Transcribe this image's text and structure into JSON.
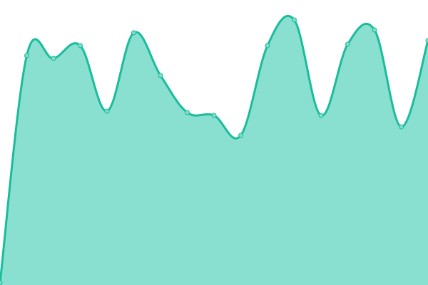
{
  "chart_data": {
    "type": "area",
    "x": [
      0,
      1,
      2,
      3,
      4,
      5,
      6,
      7,
      8,
      9,
      10,
      11,
      12,
      13,
      14,
      15,
      16
    ],
    "values": [
      3,
      322,
      318,
      336,
      244,
      354,
      294,
      242,
      238,
      210,
      336,
      372,
      238,
      338,
      358,
      222,
      343
    ],
    "ylim": [
      0,
      400
    ],
    "grid": false,
    "legend": "none",
    "colors": {
      "line": "#1abc9c",
      "fill": "#8ae0d0",
      "marker": "#7fdcc8"
    }
  }
}
